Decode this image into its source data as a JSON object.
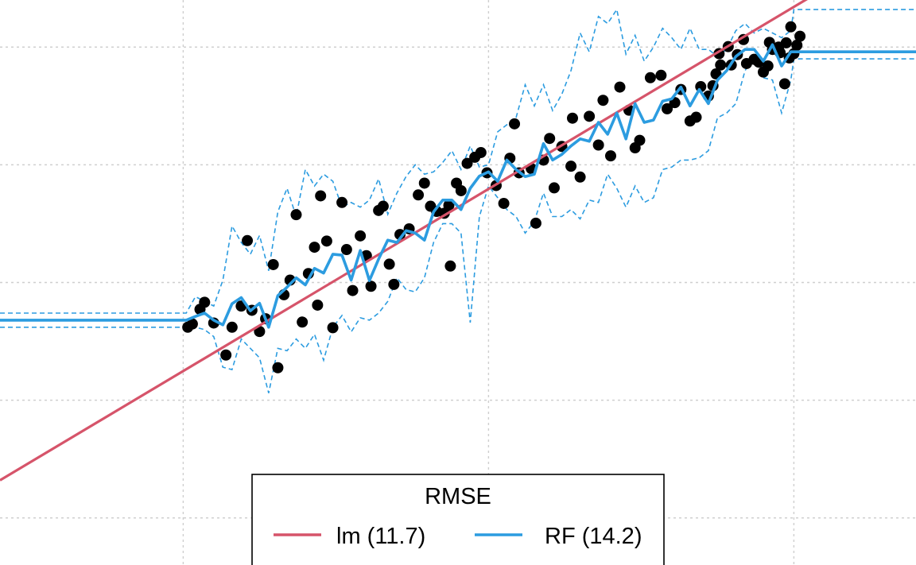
{
  "chart_data": {
    "type": "scatter",
    "title": "",
    "xlabel": "",
    "ylabel": "",
    "xlim": [
      -4,
      26
    ],
    "ylim": [
      -10,
      110
    ],
    "grid": true,
    "gridlines_x": [
      2,
      12,
      22
    ],
    "gridlines_y": [
      0,
      25,
      50,
      75,
      100
    ],
    "legend": {
      "title": "RMSE",
      "placement": "bottom-center",
      "entries": [
        {
          "label": "lm (11.7)",
          "color": "#D6546A"
        },
        {
          "label": "RF (14.2)",
          "color": "#2C9CE0"
        }
      ]
    },
    "points": [
      {
        "x": 2.15,
        "y": 40.5
      },
      {
        "x": 2.3,
        "y": 41.2
      },
      {
        "x": 2.55,
        "y": 44.3
      },
      {
        "x": 2.7,
        "y": 45.8
      },
      {
        "x": 3.0,
        "y": 41.4
      },
      {
        "x": 3.4,
        "y": 34.6
      },
      {
        "x": 3.6,
        "y": 40.5
      },
      {
        "x": 3.9,
        "y": 45.0
      },
      {
        "x": 4.1,
        "y": 58.9
      },
      {
        "x": 4.25,
        "y": 44.1
      },
      {
        "x": 4.5,
        "y": 39.6
      },
      {
        "x": 4.7,
        "y": 42.3
      },
      {
        "x": 4.95,
        "y": 53.8
      },
      {
        "x": 5.1,
        "y": 31.9
      },
      {
        "x": 5.3,
        "y": 47.4
      },
      {
        "x": 5.5,
        "y": 50.5
      },
      {
        "x": 5.7,
        "y": 64.4
      },
      {
        "x": 5.9,
        "y": 41.6
      },
      {
        "x": 6.1,
        "y": 51.9
      },
      {
        "x": 6.3,
        "y": 57.5
      },
      {
        "x": 6.5,
        "y": 68.4
      },
      {
        "x": 6.4,
        "y": 45.2
      },
      {
        "x": 6.7,
        "y": 58.8
      },
      {
        "x": 6.9,
        "y": 40.4
      },
      {
        "x": 7.2,
        "y": 67.0
      },
      {
        "x": 7.35,
        "y": 57.0
      },
      {
        "x": 7.55,
        "y": 48.3
      },
      {
        "x": 7.8,
        "y": 59.9
      },
      {
        "x": 8.0,
        "y": 55.7
      },
      {
        "x": 8.15,
        "y": 49.2
      },
      {
        "x": 8.4,
        "y": 65.3
      },
      {
        "x": 8.55,
        "y": 66.2
      },
      {
        "x": 8.75,
        "y": 53.9
      },
      {
        "x": 8.9,
        "y": 49.6
      },
      {
        "x": 9.1,
        "y": 60.2
      },
      {
        "x": 9.4,
        "y": 61.4
      },
      {
        "x": 9.7,
        "y": 68.6
      },
      {
        "x": 9.9,
        "y": 71.1
      },
      {
        "x": 10.1,
        "y": 66.2
      },
      {
        "x": 10.3,
        "y": 65.1
      },
      {
        "x": 10.55,
        "y": 64.7
      },
      {
        "x": 10.7,
        "y": 66.4
      },
      {
        "x": 10.75,
        "y": 53.5
      },
      {
        "x": 10.95,
        "y": 71.1
      },
      {
        "x": 11.1,
        "y": 69.5
      },
      {
        "x": 11.3,
        "y": 75.3
      },
      {
        "x": 11.55,
        "y": 76.6
      },
      {
        "x": 11.75,
        "y": 77.6
      },
      {
        "x": 11.95,
        "y": 73.3
      },
      {
        "x": 12.25,
        "y": 70.6
      },
      {
        "x": 12.5,
        "y": 66.8
      },
      {
        "x": 12.7,
        "y": 76.4
      },
      {
        "x": 12.85,
        "y": 83.7
      },
      {
        "x": 13.0,
        "y": 73.3
      },
      {
        "x": 13.4,
        "y": 74.2
      },
      {
        "x": 13.55,
        "y": 62.6
      },
      {
        "x": 13.8,
        "y": 76.0
      },
      {
        "x": 14.0,
        "y": 80.6
      },
      {
        "x": 14.15,
        "y": 70.1
      },
      {
        "x": 14.4,
        "y": 78.9
      },
      {
        "x": 14.7,
        "y": 74.7
      },
      {
        "x": 14.75,
        "y": 84.9
      },
      {
        "x": 15.0,
        "y": 72.4
      },
      {
        "x": 15.3,
        "y": 85.3
      },
      {
        "x": 15.6,
        "y": 79.2
      },
      {
        "x": 15.75,
        "y": 88.7
      },
      {
        "x": 16.0,
        "y": 76.9
      },
      {
        "x": 16.3,
        "y": 91.5
      },
      {
        "x": 16.6,
        "y": 86.6
      },
      {
        "x": 16.8,
        "y": 78.6
      },
      {
        "x": 16.95,
        "y": 80.2
      },
      {
        "x": 17.3,
        "y": 93.5
      },
      {
        "x": 17.65,
        "y": 94.0
      },
      {
        "x": 17.85,
        "y": 86.9
      },
      {
        "x": 18.1,
        "y": 88.2
      },
      {
        "x": 18.3,
        "y": 91.0
      },
      {
        "x": 18.6,
        "y": 84.3
      },
      {
        "x": 18.8,
        "y": 85.1
      },
      {
        "x": 18.95,
        "y": 91.6
      },
      {
        "x": 19.2,
        "y": 89.6
      },
      {
        "x": 19.35,
        "y": 91.8
      },
      {
        "x": 19.45,
        "y": 94.3
      },
      {
        "x": 19.6,
        "y": 96.2
      },
      {
        "x": 19.85,
        "y": 100.1
      },
      {
        "x": 19.95,
        "y": 96.2
      },
      {
        "x": 20.15,
        "y": 98.4
      },
      {
        "x": 20.45,
        "y": 96.5
      },
      {
        "x": 20.7,
        "y": 97.4
      },
      {
        "x": 20.85,
        "y": 96.8
      },
      {
        "x": 21.0,
        "y": 94.7
      },
      {
        "x": 21.15,
        "y": 96.0
      },
      {
        "x": 21.2,
        "y": 101.0
      },
      {
        "x": 21.3,
        "y": 99.5
      },
      {
        "x": 21.5,
        "y": 100.0
      },
      {
        "x": 21.75,
        "y": 100.9
      },
      {
        "x": 21.85,
        "y": 97.7
      },
      {
        "x": 22.0,
        "y": 98.6
      },
      {
        "x": 21.9,
        "y": 104.3
      },
      {
        "x": 22.1,
        "y": 100.4
      },
      {
        "x": 21.7,
        "y": 92.2
      },
      {
        "x": 22.2,
        "y": 102.3
      },
      {
        "x": 21.55,
        "y": 98.8
      },
      {
        "x": 20.35,
        "y": 101.6
      },
      {
        "x": 19.55,
        "y": 98.6
      }
    ],
    "series": [
      {
        "name": "lm (11.7)",
        "type": "line",
        "x": [
          -4,
          26
        ],
        "y": [
          8.0,
          124.0
        ]
      },
      {
        "name": "RF (14.2)",
        "type": "line",
        "x": [
          -4,
          2.1,
          2.4,
          2.7,
          3.0,
          3.3,
          3.6,
          3.9,
          4.2,
          4.5,
          4.8,
          5.1,
          5.4,
          5.7,
          6.0,
          6.3,
          6.6,
          6.9,
          7.2,
          7.5,
          7.8,
          8.1,
          8.4,
          8.7,
          9.0,
          9.3,
          9.6,
          9.9,
          10.2,
          10.5,
          10.8,
          11.1,
          11.4,
          11.7,
          12.0,
          12.3,
          12.6,
          12.9,
          13.2,
          13.5,
          13.8,
          14.1,
          14.4,
          14.7,
          15.0,
          15.3,
          15.6,
          15.9,
          16.2,
          16.5,
          16.8,
          17.1,
          17.4,
          17.7,
          18.0,
          18.3,
          18.6,
          18.9,
          19.2,
          19.5,
          19.8,
          20.1,
          20.4,
          20.7,
          21.0,
          21.3,
          21.6,
          21.9,
          22.0,
          26
        ],
        "y": [
          42.0,
          42.0,
          42.8,
          43.5,
          42.0,
          41.0,
          45.5,
          46.8,
          44.0,
          45.6,
          40.5,
          47.2,
          49.0,
          51.0,
          49.5,
          53.0,
          52.0,
          56.0,
          55.8,
          50.5,
          56.8,
          50.4,
          55.0,
          59.0,
          58.5,
          61.0,
          60.5,
          59.0,
          65.0,
          67.5,
          67.5,
          65.5,
          70.0,
          72.6,
          73.5,
          71.5,
          76.0,
          74.0,
          72.5,
          73.0,
          79.5,
          76.0,
          77.2,
          79.0,
          80.5,
          80.0,
          84.0,
          81.5,
          86.0,
          80.5,
          88.0,
          84.0,
          84.5,
          88.5,
          89.0,
          91.5,
          87.5,
          91.0,
          88.0,
          93.0,
          95.0,
          98.0,
          99.5,
          99.5,
          97.0,
          100.5,
          96.0,
          99.0,
          99.0,
          99.0
        ]
      },
      {
        "name": "",
        "type": "line",
        "x": [
          -4,
          2.1,
          2.4,
          2.7,
          3.0,
          3.3,
          3.6,
          3.9,
          4.2,
          4.5,
          4.8,
          5.1,
          5.4,
          5.7,
          6.0,
          6.3,
          6.6,
          6.9,
          7.2,
          7.5,
          7.8,
          8.1,
          8.4,
          8.7,
          9.0,
          9.3,
          9.6,
          9.9,
          10.2,
          10.5,
          10.8,
          11.1,
          11.4,
          11.7,
          12.0,
          12.3,
          12.6,
          12.9,
          13.2,
          13.5,
          13.8,
          14.1,
          14.4,
          14.7,
          15.0,
          15.3,
          15.6,
          15.9,
          16.2,
          16.5,
          16.8,
          17.1,
          17.4,
          17.7,
          18.0,
          18.3,
          18.6,
          18.9,
          19.2,
          19.5,
          19.8,
          20.1,
          20.4,
          20.7,
          21.0,
          21.3,
          21.6,
          21.9,
          22.0,
          26
        ],
        "y": [
          43.5,
          43.5,
          47.0,
          46.0,
          45.0,
          50.5,
          62.0,
          58.5,
          56.0,
          60.0,
          52.5,
          65.0,
          70.0,
          64.0,
          74.0,
          70.5,
          73.0,
          71.5,
          66.0,
          67.0,
          66.0,
          67.5,
          72.0,
          64.5,
          69.0,
          72.5,
          75.0,
          73.0,
          73.5,
          75.5,
          78.0,
          74.0,
          79.0,
          74.5,
          75.0,
          82.0,
          83.5,
          85.0,
          92.0,
          87.5,
          92.0,
          86.5,
          90.0,
          95.0,
          103.0,
          99.0,
          106.5,
          105.0,
          108.0,
          98.5,
          102.5,
          97.0,
          100.0,
          104.0,
          102.0,
          99.5,
          104.0,
          99.5,
          99.5,
          98.0,
          99.5,
          103.5,
          105.0,
          103.0,
          104.0,
          103.0,
          102.0,
          103.5,
          108.0,
          108.0
        ]
      },
      {
        "name": "",
        "type": "line",
        "x": [
          -4,
          2.1,
          2.4,
          2.7,
          3.0,
          3.3,
          3.6,
          3.9,
          4.2,
          4.5,
          4.8,
          5.1,
          5.4,
          5.7,
          6.0,
          6.3,
          6.6,
          6.9,
          7.2,
          7.5,
          7.8,
          8.1,
          8.4,
          8.7,
          9.0,
          9.3,
          9.6,
          9.9,
          10.2,
          10.5,
          10.8,
          11.1,
          11.4,
          11.7,
          12.0,
          12.3,
          12.6,
          12.9,
          13.2,
          13.5,
          13.8,
          14.1,
          14.4,
          14.7,
          15.0,
          15.3,
          15.6,
          15.9,
          16.2,
          16.5,
          16.8,
          17.1,
          17.4,
          17.7,
          18.0,
          18.3,
          18.6,
          18.9,
          19.2,
          19.5,
          19.8,
          20.1,
          20.4,
          20.7,
          21.0,
          21.3,
          21.6,
          21.9,
          22.0,
          26
        ],
        "y": [
          40.5,
          40.5,
          40.5,
          40.0,
          38.5,
          32.0,
          31.5,
          38.0,
          36.0,
          34.0,
          26.5,
          36.0,
          35.5,
          38.0,
          36.0,
          39.0,
          33.5,
          40.5,
          43.0,
          39.5,
          42.5,
          42.0,
          43.5,
          46.0,
          51.0,
          48.5,
          48.0,
          51.0,
          58.5,
          62.5,
          62.5,
          60.5,
          41.5,
          64.0,
          70.5,
          68.0,
          65.5,
          64.0,
          60.5,
          63.0,
          69.0,
          64.0,
          64.0,
          65.5,
          63.5,
          67.5,
          67.0,
          73.0,
          70.0,
          66.0,
          70.5,
          67.0,
          68.0,
          74.0,
          74.5,
          76.0,
          76.0,
          76.5,
          78.0,
          85.0,
          86.0,
          88.0,
          95.0,
          98.0,
          93.5,
          93.0,
          86.0,
          93.0,
          97.5,
          97.5
        ]
      }
    ]
  }
}
